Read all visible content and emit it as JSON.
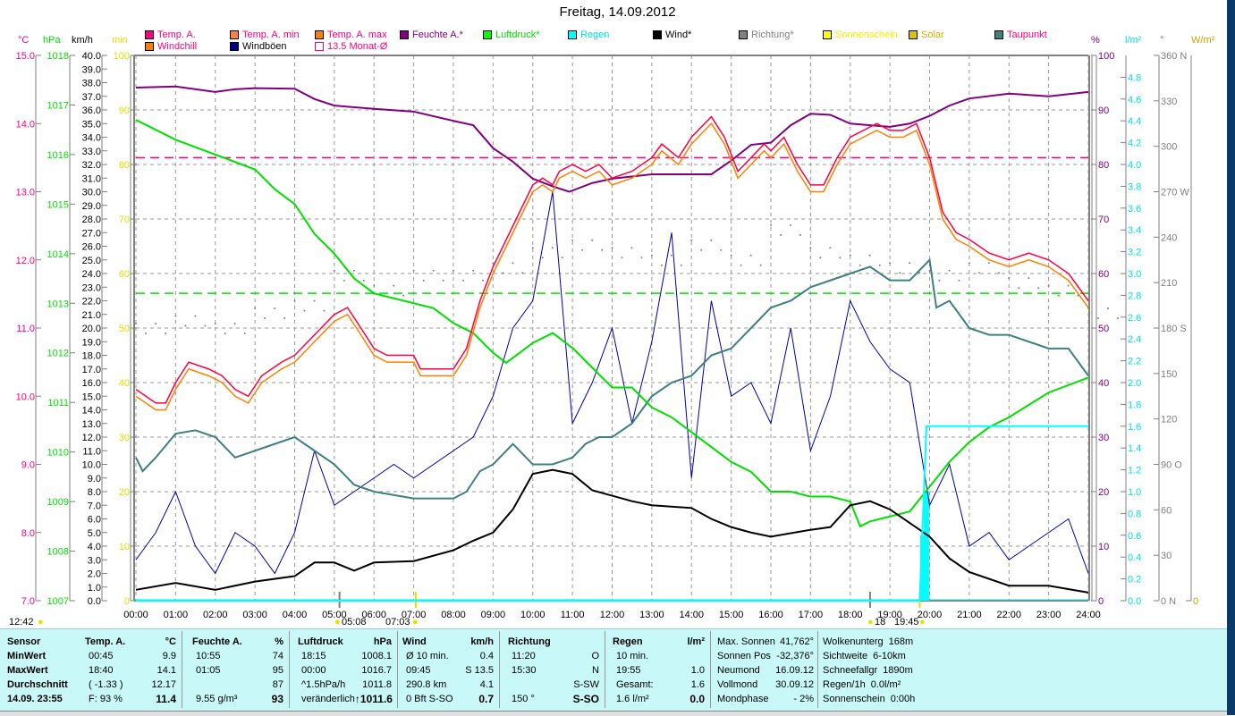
{
  "title": "Freitag, 14.09.2012",
  "legend": [
    {
      "label": "Temp. A.",
      "color": "#ff0080",
      "text": "#ff0080"
    },
    {
      "label": "Temp. A. min",
      "color": "#ff8040",
      "text": "#ff0080"
    },
    {
      "label": "Temp. A. max",
      "color": "#ff8000",
      "text": "#ff0080"
    },
    {
      "label": "Feuchte A.*",
      "color": "#800080",
      "text": "#800080"
    },
    {
      "label": "Luftdruck*",
      "color": "#00ff00",
      "text": "#00e000"
    },
    {
      "label": "Regen",
      "color": "#00ffff",
      "text": "#00e0e0"
    },
    {
      "label": "Wind*",
      "color": "#000000",
      "text": "#000000"
    },
    {
      "label": "Richtung*",
      "color": "#808080",
      "text": "#808080"
    },
    {
      "label": "Sonnenschein",
      "color": "#ffff00",
      "text": "#f0f000"
    },
    {
      "label": "Solar",
      "color": "#e0c000",
      "text": "#d0b000"
    },
    {
      "label": "Taupunkt",
      "color": "#408080",
      "text": "#ff0080"
    },
    {
      "label": "Windchill",
      "color": "#ff8000",
      "text": "#ff0080"
    },
    {
      "label": "Windböen",
      "color": "#000080",
      "text": "#000000"
    },
    {
      "label": "13.5 Monat-Ø",
      "color": "#ffffff",
      "text": "#ff0080"
    }
  ],
  "units": {
    "temp": "°C",
    "hpa": "hPa",
    "kmh": "km/h",
    "min": "min",
    "pct": "%",
    "rain": "l/m²",
    "deg": "°",
    "solar": "W/m²"
  },
  "markers": {
    "left": "12:42",
    "m1": "05:08",
    "m2": "07:03",
    "m3": "18",
    "m4": "19:45"
  },
  "chart_data": {
    "type": "line",
    "x_ticks": [
      "00:00",
      "01:00",
      "02:00",
      "03:00",
      "04:00",
      "05:00",
      "06:00",
      "07:00",
      "08:00",
      "09:00",
      "10:00",
      "11:00",
      "12:00",
      "13:00",
      "14:00",
      "15:00",
      "16:00",
      "17:00",
      "18:00",
      "19:00",
      "20:00",
      "21:00",
      "22:00",
      "23:00",
      "24:00"
    ],
    "xlim": [
      0,
      24
    ],
    "grid": true,
    "axes": {
      "temp": {
        "range": [
          7,
          15
        ],
        "step": 1
      },
      "hpa": {
        "range": [
          1007,
          1018
        ],
        "step": 1
      },
      "kmh": {
        "range": [
          0,
          40
        ],
        "step": 1
      },
      "min": {
        "range": [
          0,
          100
        ],
        "step": 10
      },
      "pct": {
        "range": [
          0,
          100
        ],
        "step": 10
      },
      "rain": {
        "range": [
          0,
          5
        ],
        "ticks": [
          0,
          4.8
        ],
        "step": 0.2
      },
      "deg": {
        "range": [
          0,
          360
        ],
        "step": 30,
        "compass": {
          "0": "N",
          "90": "O",
          "180": "S",
          "270": "W",
          "360": "N"
        }
      },
      "solar": {
        "ticks": [
          0
        ]
      }
    },
    "reference_lines": [
      {
        "axis": "temp",
        "value": 13.5,
        "color": "#ff0080"
      },
      {
        "axis": "hpa",
        "value": 1013.2,
        "color": "#00e000"
      }
    ],
    "series": {
      "temp": {
        "axis": "temp",
        "color": "#ff0040",
        "x": [
          0,
          0.5,
          0.75,
          1,
          1.33,
          1.83,
          2.17,
          2.5,
          2.83,
          3.17,
          3.67,
          4,
          4.5,
          5,
          5.33,
          5.67,
          6,
          6.33,
          7,
          7.17,
          8,
          8.33,
          8.67,
          9,
          9.5,
          10,
          10.25,
          10.5,
          10.67,
          11,
          11.33,
          11.67,
          12,
          12.5,
          13,
          13.25,
          13.67,
          14,
          14.33,
          14.5,
          14.83,
          15.17,
          15.5,
          15.83,
          16,
          16.33,
          16.67,
          17,
          17.33,
          17.67,
          18,
          18.33,
          18.67,
          19,
          19.33,
          19.67,
          20,
          20.33,
          20.67,
          21,
          21.5,
          22,
          22.5,
          23,
          23.5,
          24
        ],
        "y": [
          10.1,
          9.9,
          9.9,
          10.2,
          10.5,
          10.4,
          10.3,
          10.1,
          10.0,
          10.3,
          10.5,
          10.6,
          10.9,
          11.2,
          11.3,
          11.0,
          10.7,
          10.6,
          10.6,
          10.4,
          10.4,
          10.7,
          11.4,
          11.9,
          12.5,
          13.1,
          13.2,
          13.1,
          13.3,
          13.4,
          13.3,
          13.4,
          13.2,
          13.3,
          13.5,
          13.7,
          13.5,
          13.8,
          14.0,
          14.1,
          13.8,
          13.3,
          13.5,
          13.7,
          13.6,
          13.8,
          13.4,
          13.1,
          13.1,
          13.5,
          13.8,
          13.9,
          14.0,
          13.9,
          13.9,
          14.0,
          13.5,
          12.7,
          12.4,
          12.3,
          12.1,
          12.0,
          12.1,
          12.0,
          11.8,
          11.4
        ]
      },
      "windchill": {
        "axis": "temp",
        "color": "#ff8000",
        "x": [
          0,
          0.5,
          0.75,
          1,
          1.33,
          1.83,
          2.17,
          2.5,
          2.83,
          3.17,
          3.67,
          4,
          4.5,
          5,
          5.33,
          5.67,
          6,
          6.33,
          7,
          7.17,
          8,
          8.33,
          8.67,
          9,
          9.5,
          10,
          10.25,
          10.5,
          10.67,
          11,
          11.33,
          11.67,
          12,
          12.5,
          13,
          13.25,
          13.67,
          14,
          14.33,
          14.5,
          14.83,
          15.17,
          15.5,
          15.83,
          16,
          16.33,
          16.67,
          17,
          17.33,
          17.67,
          18,
          18.33,
          18.67,
          19,
          19.33,
          19.67,
          20,
          20.33,
          20.67,
          21,
          21.5,
          22,
          22.5,
          23,
          23.5,
          24
        ],
        "y": [
          10.0,
          9.8,
          9.8,
          10.1,
          10.4,
          10.3,
          10.2,
          10.0,
          9.9,
          10.2,
          10.4,
          10.5,
          10.8,
          11.1,
          11.2,
          10.9,
          10.6,
          10.5,
          10.5,
          10.3,
          10.3,
          10.6,
          11.3,
          11.8,
          12.4,
          13.0,
          13.1,
          13.0,
          13.2,
          13.3,
          13.2,
          13.3,
          13.1,
          13.2,
          13.4,
          13.6,
          13.4,
          13.7,
          13.9,
          14.0,
          13.7,
          13.2,
          13.4,
          13.6,
          13.5,
          13.7,
          13.3,
          13.0,
          13.0,
          13.4,
          13.7,
          13.8,
          13.9,
          13.8,
          13.8,
          13.9,
          13.4,
          12.6,
          12.3,
          12.2,
          12.0,
          11.9,
          12.0,
          11.9,
          11.7,
          11.3
        ]
      },
      "humidity": {
        "axis": "pct",
        "color": "#800080",
        "x": [
          0,
          1,
          2,
          2.5,
          3,
          4,
          4.5,
          5,
          6,
          7,
          8,
          8.5,
          9,
          9.5,
          10,
          10.5,
          10.92,
          11.5,
          12,
          13,
          14,
          14.5,
          15,
          15.5,
          16,
          16.5,
          17,
          17.5,
          18,
          18.5,
          19,
          19.5,
          20,
          20.5,
          21,
          22,
          23,
          24
        ],
        "y": [
          94.1,
          94.3,
          93.3,
          93.8,
          94,
          93.9,
          92,
          90.8,
          90.2,
          89.7,
          88,
          87.2,
          83,
          80.5,
          77.4,
          76,
          75,
          76.6,
          77.4,
          78.2,
          78.2,
          78.2,
          80.7,
          83.6,
          84,
          87.2,
          89.3,
          89.1,
          87.5,
          87.2,
          86.9,
          87.5,
          88.9,
          90.8,
          92.1,
          93,
          92.5,
          93.3
        ]
      },
      "pressure": {
        "axis": "hpa",
        "color": "#00e000",
        "x": [
          0,
          0.5,
          1,
          2,
          3,
          3.5,
          4,
          4.5,
          5,
          5.5,
          6,
          7,
          7.5,
          8,
          8.5,
          9,
          9.33,
          9.67,
          10,
          10.5,
          11,
          11.5,
          12,
          12.5,
          13,
          13.5,
          14,
          14.5,
          15,
          15.5,
          16,
          16.5,
          17,
          17.5,
          18,
          18.25,
          18.5,
          19,
          19.5,
          20,
          20.5,
          21,
          21.5,
          22,
          23,
          24
        ],
        "y": [
          1016.7,
          1016.5,
          1016.3,
          1016.0,
          1015.7,
          1015.3,
          1015.0,
          1014.4,
          1014.0,
          1013.5,
          1013.2,
          1013.0,
          1012.9,
          1012.6,
          1012.4,
          1012.0,
          1011.8,
          1012.0,
          1012.2,
          1012.4,
          1012.1,
          1011.7,
          1011.3,
          1011.3,
          1010.9,
          1010.7,
          1010.4,
          1010.1,
          1009.8,
          1009.6,
          1009.2,
          1009.2,
          1009.1,
          1009.1,
          1009.0,
          1008.5,
          1008.6,
          1008.7,
          1008.8,
          1009.3,
          1009.8,
          1010.2,
          1010.5,
          1010.7,
          1011.2,
          1011.5
        ]
      },
      "dewpoint": {
        "axis": "temp",
        "color": "#408080",
        "x": [
          0,
          0.17,
          0.5,
          1,
          1.5,
          2,
          2.5,
          3,
          3.5,
          4,
          4.5,
          5,
          5.5,
          6,
          7,
          8,
          8.33,
          8.67,
          9,
          9.5,
          10,
          10.5,
          11,
          11.33,
          11.67,
          12,
          12.5,
          13,
          13.5,
          14,
          14.5,
          15,
          15.5,
          16,
          16.5,
          17,
          17.5,
          18,
          18.5,
          19,
          19.5,
          20,
          20.17,
          20.5,
          21,
          21.5,
          22,
          22.5,
          23,
          23.5,
          24
        ],
        "y": [
          9.1,
          8.9,
          9.1,
          9.45,
          9.5,
          9.4,
          9.1,
          9.2,
          9.3,
          9.4,
          9.2,
          9.0,
          8.7,
          8.6,
          8.5,
          8.5,
          8.6,
          8.9,
          9.0,
          9.3,
          9.0,
          9.0,
          9.1,
          9.3,
          9.4,
          9.4,
          9.6,
          10.0,
          10.2,
          10.3,
          10.6,
          10.7,
          11.0,
          11.3,
          11.4,
          11.6,
          11.7,
          11.8,
          11.9,
          11.7,
          11.7,
          12.0,
          11.3,
          11.4,
          11.0,
          10.9,
          10.9,
          10.8,
          10.7,
          10.7,
          10.3
        ]
      },
      "wind": {
        "axis": "kmh",
        "color": "#000000",
        "x": [
          0,
          1,
          2,
          3,
          4,
          4.5,
          5,
          5.5,
          6,
          7,
          8,
          8.5,
          9,
          9.5,
          10,
          10.5,
          11,
          11.5,
          12,
          12.5,
          13,
          14,
          14.5,
          15,
          15.5,
          16,
          17,
          17.5,
          18,
          18.5,
          19,
          19.5,
          20,
          20.5,
          21,
          22,
          23,
          24
        ],
        "y": [
          0.8,
          1.3,
          0.8,
          1.4,
          1.8,
          2.8,
          2.8,
          2.2,
          2.8,
          2.9,
          3.7,
          4.4,
          5.0,
          6.7,
          9.3,
          9.6,
          9.3,
          8.1,
          7.7,
          7.3,
          7.0,
          6.8,
          6.0,
          5.4,
          5.0,
          4.7,
          5.2,
          5.4,
          7.0,
          7.3,
          6.7,
          5.7,
          4.7,
          3.1,
          2.1,
          1.1,
          1.1,
          0.6
        ]
      },
      "gusts": {
        "axis": "kmh",
        "color": "#0000a0",
        "x": [
          0,
          0.5,
          1,
          1.5,
          2,
          2.5,
          3,
          3.5,
          4,
          4.5,
          5,
          5.5,
          6,
          6.5,
          7,
          7.5,
          8,
          8.5,
          9,
          9.5,
          10,
          10.5,
          11,
          11.5,
          12,
          12.5,
          13,
          13.5,
          14,
          14.5,
          15,
          15.5,
          16,
          16.5,
          17,
          17.5,
          18,
          18.5,
          19,
          19.5,
          20,
          20.5,
          21,
          21.5,
          22,
          22.5,
          23,
          23.5,
          24
        ],
        "y": [
          3,
          5,
          8,
          4,
          2,
          5,
          4,
          2,
          5,
          11,
          7,
          8,
          9,
          10,
          9,
          10,
          11,
          12,
          15,
          20,
          22,
          30,
          13,
          16,
          20,
          13,
          19,
          27,
          9,
          22,
          15,
          16,
          13,
          20,
          11,
          15,
          22,
          19,
          17,
          16,
          7,
          10,
          4,
          5,
          3,
          4,
          5,
          6,
          2
        ]
      },
      "direction": {
        "axis": "deg",
        "color": "#808080",
        "x": [
          0,
          1,
          2,
          3,
          4,
          5,
          6,
          7,
          8,
          9,
          10,
          11,
          12,
          13,
          14,
          15,
          16,
          17,
          18,
          19,
          20,
          21,
          22,
          23,
          24
        ],
        "y": [
          180,
          185,
          180,
          190,
          195,
          215,
          205,
          215,
          215,
          220,
          230,
          235,
          230,
          225,
          235,
          225,
          245,
          230,
          225,
          220,
          215,
          220,
          210,
          205,
          190
        ]
      },
      "rain_total": {
        "axis": "rain",
        "color": "#00ffff",
        "x": [
          0,
          19.75,
          19.92,
          24
        ],
        "y": [
          0,
          0,
          1.6,
          1.6
        ]
      },
      "rain_10min": {
        "axis": "rain",
        "color": "#00ffff",
        "x": [
          19.83,
          19.92
        ],
        "y": [
          0.6,
          1.0
        ]
      }
    }
  },
  "table": {
    "sensor": [
      "Sensor",
      "MinWert",
      "MaxWert",
      "Durchschnitt",
      "14.09. 23:55"
    ],
    "columns": [
      {
        "h": "Temp. A.",
        "u": "°C",
        "rows": [
          [
            "00:45",
            "9.9"
          ],
          [
            "18:40",
            "14.1"
          ],
          [
            "( -1.33 )",
            "12.17"
          ],
          [
            "F: 93 %",
            "11.4"
          ]
        ]
      },
      {
        "h": "Feuchte A.",
        "u": "%",
        "rows": [
          [
            "10:55",
            "74"
          ],
          [
            "01:05",
            "95"
          ],
          [
            "",
            "87"
          ],
          [
            "9.55 g/m³",
            "93"
          ]
        ]
      },
      {
        "h": "Luftdruck",
        "u": "hPa",
        "rows": [
          [
            "18:15",
            "1008.1"
          ],
          [
            "00:00",
            "1016.7"
          ],
          [
            "^1.5hPa/h",
            "1011.8"
          ],
          [
            "veränderlich",
            "↑1011.6"
          ]
        ]
      },
      {
        "h": "Wind",
        "u": "km/h",
        "rows": [
          [
            "Ø 10 min.",
            "0.4"
          ],
          [
            "09:45",
            "S 13.5"
          ],
          [
            "290.8 km",
            "4.1"
          ],
          [
            "0 Bft S-SO",
            "0.7"
          ]
        ]
      },
      {
        "h": "Richtung",
        "u": "",
        "rows": [
          [
            "11:20",
            "O"
          ],
          [
            "15:30",
            "N"
          ],
          [
            "",
            "S-SW"
          ],
          [
            "150 °",
            "S-SO"
          ]
        ]
      },
      {
        "h": "Regen",
        "u": "l/m²",
        "rows": [
          [
            "10 min.",
            ""
          ],
          [
            "19:55",
            "1.0"
          ],
          [
            "Gesamt:",
            "1.6"
          ],
          [
            "1.6 l/m²",
            "0.0"
          ]
        ]
      }
    ],
    "astro": [
      [
        "Max. Sonnen",
        "41,762°"
      ],
      [
        "Sonnen Pos",
        "-32,376°"
      ],
      [
        "Neumond",
        "16.09.12"
      ],
      [
        "Vollmond",
        "30.09.12"
      ],
      [
        "Mondphase",
        "- 2%"
      ]
    ],
    "misc": [
      [
        "Wolkenunterg",
        "168m"
      ],
      [
        "Sichtweite",
        "6-10km"
      ],
      [
        "Schneefallgr",
        "1890m"
      ],
      [
        "Regen/1h",
        "0.0l/m²"
      ],
      [
        "Sonnenschein",
        "0:00h"
      ]
    ]
  }
}
